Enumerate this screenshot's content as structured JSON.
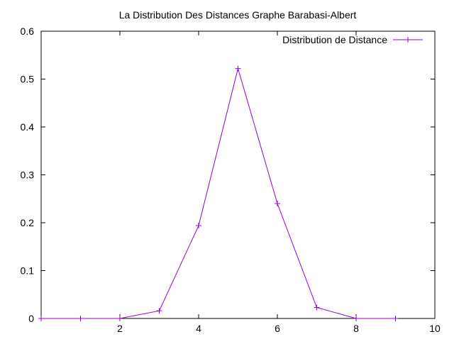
{
  "chart_data": {
    "type": "line",
    "title": "La Distribution Des Distances Graphe Barabasi-Albert",
    "xlabel": "",
    "ylabel": "",
    "xlim": [
      0,
      10
    ],
    "ylim": [
      0,
      0.6
    ],
    "x_ticks": [
      2,
      4,
      6,
      8,
      10
    ],
    "y_ticks": [
      0,
      0.1,
      0.2,
      0.3,
      0.4,
      0.5,
      0.6
    ],
    "x_tick_labels": [
      "2",
      "4",
      "6",
      "8",
      "10"
    ],
    "y_tick_labels": [
      "0",
      "0.1",
      "0.2",
      "0.3",
      "0.4",
      "0.5",
      "0.6"
    ],
    "grid": false,
    "legend": {
      "position": "top-right"
    },
    "series": [
      {
        "name": "Distribution de Distance",
        "color": "#9400d3",
        "marker": "plus",
        "x": [
          0,
          1,
          2,
          3,
          4,
          5,
          6,
          7,
          8,
          9
        ],
        "y": [
          0,
          0,
          0,
          0.016,
          0.194,
          0.522,
          0.24,
          0.023,
          0,
          0
        ]
      }
    ]
  }
}
